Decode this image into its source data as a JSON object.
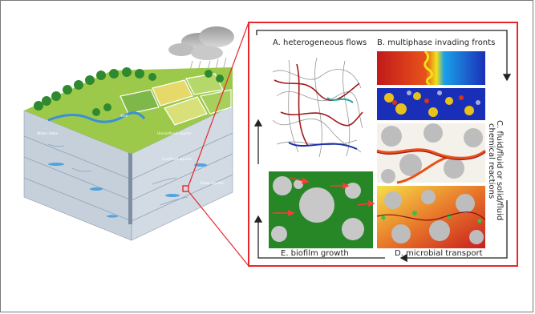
{
  "figure": {
    "panels": {
      "a": "A. heterogeneous flows",
      "b": "B. multiphase invading fronts",
      "c_line1": "C. fluid/fluid or solid/fluid",
      "c_line2": "chemical reactions",
      "d": "D. microbial transport",
      "e": "E. biofilm growth"
    },
    "landscape": {
      "tags": [
        "Well",
        "Unconfined aquifer",
        "Confined aquifer",
        "Water table",
        "Deep aquifer"
      ]
    },
    "colors": {
      "highlight_box": "#e8262b",
      "cycle_arrows": "#222222",
      "biofilm_bg": "#1f7a1f",
      "soil": "#c9d2dc"
    }
  }
}
